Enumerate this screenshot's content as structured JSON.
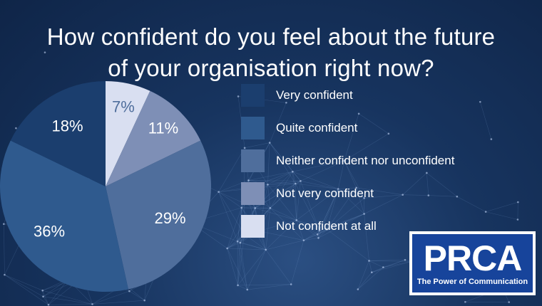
{
  "title_lines": [
    "How confident do you feel about the future",
    "of your organisation right now?"
  ],
  "chart_data": {
    "type": "pie",
    "categories": [
      "Very confident",
      "Quite confident",
      "Neither confident nor unconfident",
      "Not very confident",
      "Not confident at all"
    ],
    "values": [
      18,
      36,
      29,
      11,
      7
    ],
    "data_labels": [
      "18%",
      "36%",
      "29%",
      "11%",
      "7%"
    ],
    "colors": [
      "#1b3e6e",
      "#2f5a8e",
      "#4f6e9c",
      "#7e8fb6",
      "#d9dff1"
    ],
    "legend_position": "right"
  },
  "logo": {
    "wordmark": "PRCA",
    "tagline": "The Power of Communication",
    "colors": {
      "background": "#17449b",
      "border": "#ffffff"
    }
  }
}
